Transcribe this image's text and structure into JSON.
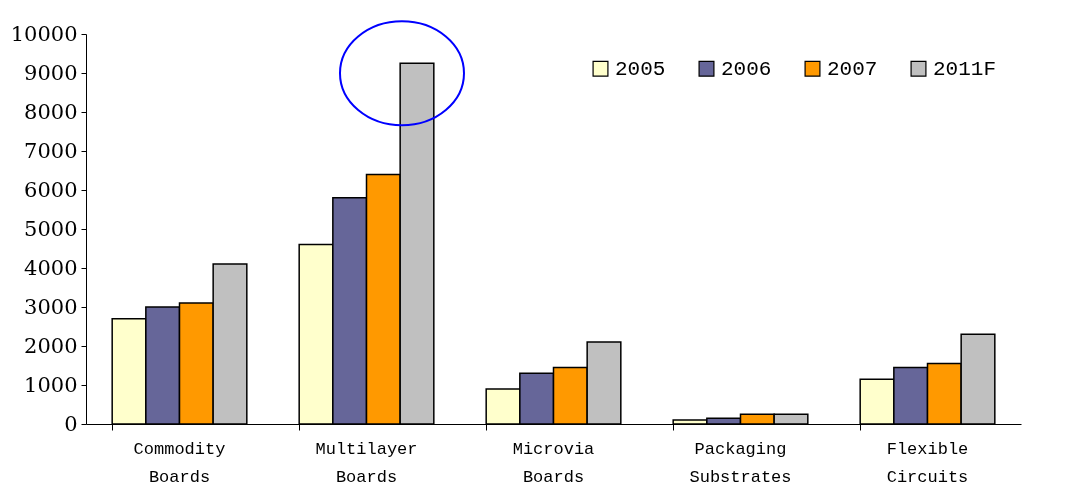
{
  "chart_data": {
    "type": "bar",
    "categories": [
      "Commodity Boards",
      "Multilayer Boards",
      "Microvia Boards",
      "Packaging Substrates",
      "Flexible Circuits"
    ],
    "series": [
      {
        "name": "2005",
        "color": "#ffffcc",
        "values": [
          2700,
          4600,
          900,
          100,
          1150
        ]
      },
      {
        "name": "2006",
        "color": "#666699",
        "values": [
          3000,
          5800,
          1300,
          150,
          1450
        ]
      },
      {
        "name": "2007",
        "color": "#ff9900",
        "values": [
          3100,
          6400,
          1450,
          250,
          1550
        ]
      },
      {
        "name": "2011F",
        "color": "#c0c0c0",
        "values": [
          4100,
          9250,
          2100,
          250,
          2300
        ]
      }
    ],
    "ylim": [
      0,
      10000
    ],
    "yticks": [
      0,
      1000,
      2000,
      3000,
      4000,
      5000,
      6000,
      7000,
      8000,
      9000,
      10000
    ],
    "grid": false,
    "legend": "top right"
  }
}
